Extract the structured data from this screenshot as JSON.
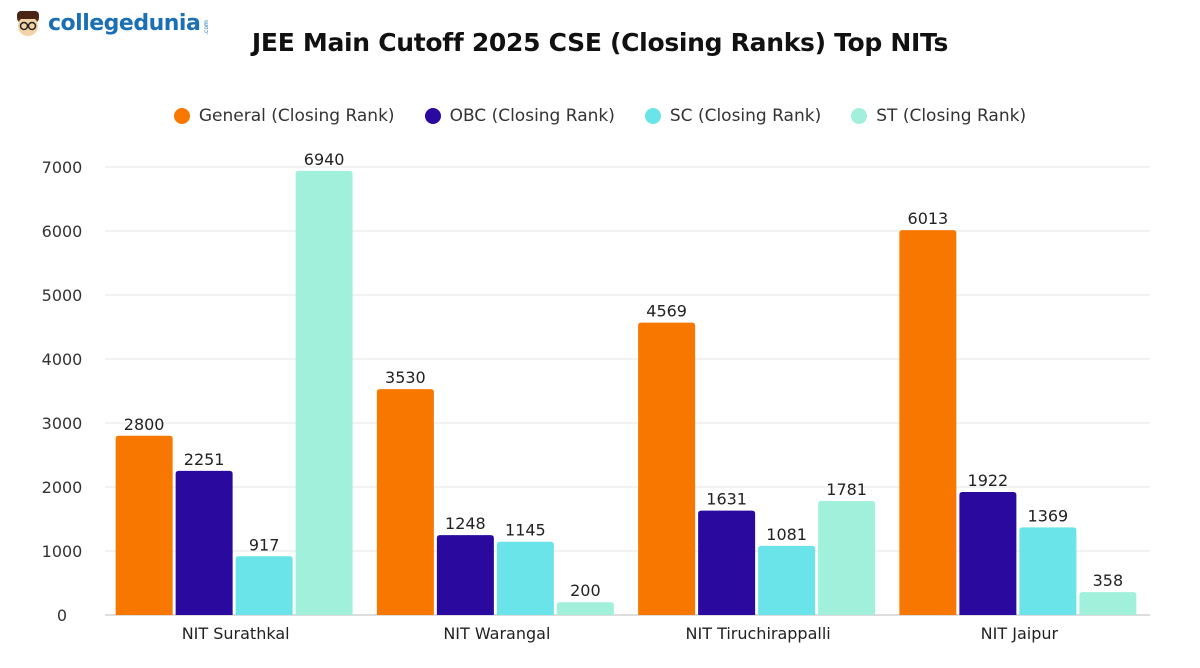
{
  "brand": {
    "name": "collegedunia",
    "suffix": ".com"
  },
  "chart_data": {
    "type": "bar",
    "title": "JEE Main Cutoff 2025 CSE (Closing Ranks) Top NITs",
    "xlabel": "",
    "ylabel": "",
    "ylim": [
      0,
      7000
    ],
    "yticks": [
      0,
      1000,
      2000,
      3000,
      4000,
      5000,
      6000,
      7000
    ],
    "grid": true,
    "legend": "top",
    "categories": [
      "NIT Surathkal",
      "NIT Warangal",
      "NIT Tiruchirappalli",
      "NIT Jaipur"
    ],
    "series": [
      {
        "name": "General (Closing Rank)",
        "color": "#F77700",
        "values": [
          2800,
          3530,
          4569,
          6013
        ]
      },
      {
        "name": "OBC (Closing Rank)",
        "color": "#2A0A9E",
        "values": [
          2251,
          1248,
          1631,
          1922
        ]
      },
      {
        "name": "SC (Closing Rank)",
        "color": "#6AE4E8",
        "values": [
          917,
          1145,
          1081,
          1369
        ]
      },
      {
        "name": "ST (Closing Rank)",
        "color": "#A0F0DC",
        "values": [
          6940,
          200,
          1781,
          358
        ]
      }
    ]
  }
}
